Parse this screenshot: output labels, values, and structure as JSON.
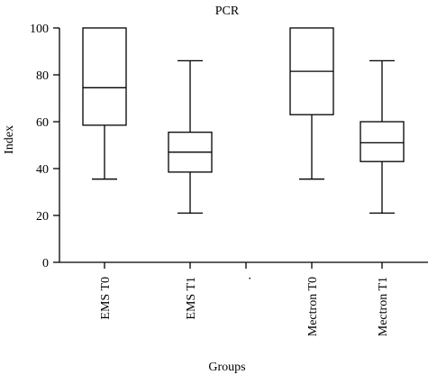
{
  "chart_data": {
    "type": "box",
    "title": "PCR",
    "xlabel": "Groups",
    "ylabel": "Index",
    "ylim": [
      0,
      100
    ],
    "yticks": [
      0,
      20,
      40,
      60,
      80,
      100
    ],
    "grid": false,
    "categories": [
      "EMS T0",
      "EMS T1",
      ".",
      "Mectron T0",
      "Mectron T1"
    ],
    "boxes": [
      {
        "category": "EMS T0",
        "min": 35.5,
        "q1": 58.5,
        "median": 74.5,
        "q3": 100,
        "max": 100
      },
      {
        "category": "EMS T1",
        "min": 21,
        "q1": 38.5,
        "median": 47,
        "q3": 55.5,
        "max": 86
      },
      null,
      {
        "category": "Mectron T0",
        "min": 35.5,
        "q1": 63,
        "median": 81.5,
        "q3": 100,
        "max": 100
      },
      {
        "category": "Mectron T1",
        "min": 21,
        "q1": 43,
        "median": 51,
        "q3": 60,
        "max": 86
      }
    ]
  }
}
